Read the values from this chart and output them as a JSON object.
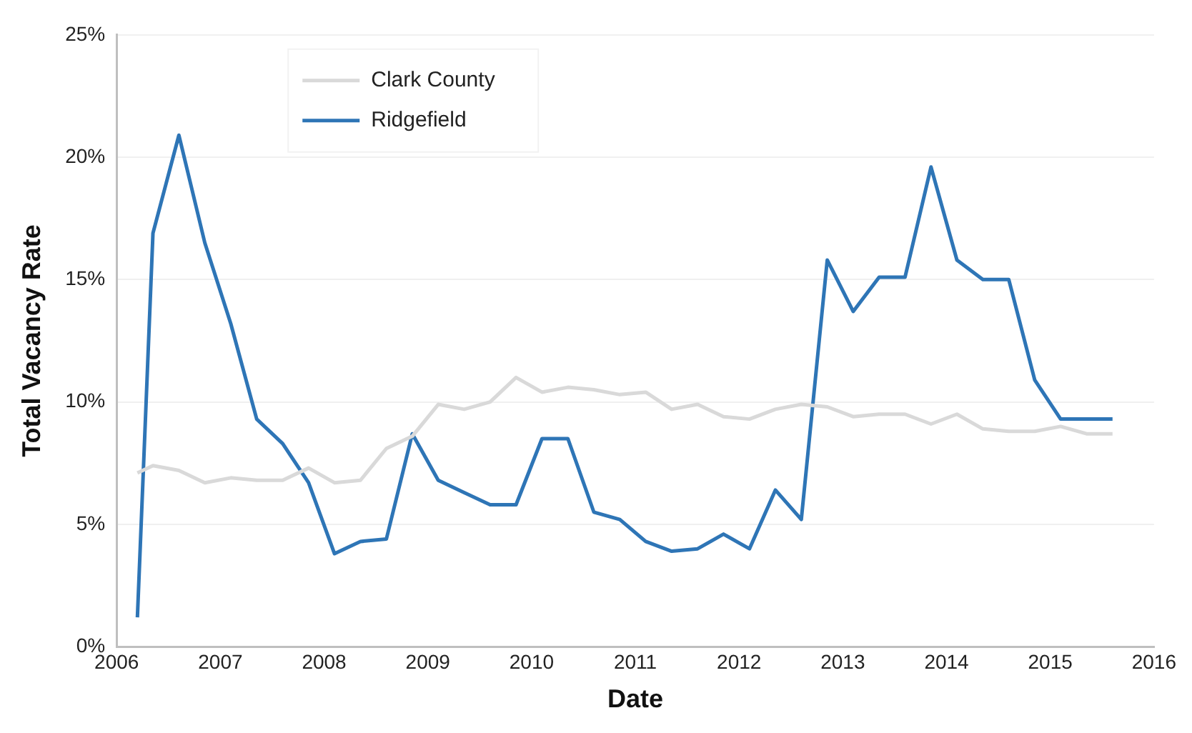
{
  "chart_data": {
    "type": "line",
    "xlabel": "Date",
    "ylabel": "Total Vacancy Rate",
    "x": [
      2006.2,
      2006.35,
      2006.6,
      2006.85,
      2007.1,
      2007.35,
      2007.6,
      2007.85,
      2008.1,
      2008.35,
      2008.6,
      2008.85,
      2009.1,
      2009.35,
      2009.6,
      2009.85,
      2010.1,
      2010.35,
      2010.6,
      2010.85,
      2011.1,
      2011.35,
      2011.6,
      2011.85,
      2012.1,
      2012.35,
      2012.6,
      2012.85,
      2013.1,
      2013.35,
      2013.6,
      2013.85,
      2014.1,
      2014.35,
      2014.6,
      2014.85,
      2015.1,
      2015.35,
      2015.6
    ],
    "series": [
      {
        "name": "Clark County",
        "color": "#d9d9d9",
        "values": [
          7.1,
          7.4,
          7.2,
          6.7,
          6.9,
          6.8,
          6.8,
          7.3,
          6.7,
          6.8,
          8.1,
          8.6,
          9.9,
          9.7,
          10.0,
          11.0,
          10.4,
          10.6,
          10.5,
          10.3,
          10.4,
          9.7,
          9.9,
          9.4,
          9.3,
          9.7,
          9.9,
          9.8,
          9.4,
          9.5,
          9.5,
          9.1,
          9.5,
          8.9,
          8.8,
          8.8,
          9.0,
          8.7,
          8.7
        ]
      },
      {
        "name": "Ridgefield",
        "color": "#2e75b6",
        "values": [
          1.2,
          16.9,
          20.9,
          16.5,
          13.2,
          9.3,
          8.3,
          6.7,
          3.8,
          4.3,
          4.4,
          8.7,
          6.8,
          6.3,
          5.8,
          5.8,
          8.5,
          8.5,
          5.5,
          5.2,
          4.3,
          3.9,
          4.0,
          4.6,
          4.0,
          6.4,
          5.2,
          15.8,
          13.7,
          15.1,
          15.1,
          19.6,
          15.8,
          15.0,
          15.0,
          10.9,
          9.3,
          9.3,
          9.3
        ]
      }
    ],
    "xlim": [
      2006,
      2016
    ],
    "xticks": [
      2006,
      2007,
      2008,
      2009,
      2010,
      2011,
      2012,
      2013,
      2014,
      2015,
      2016
    ],
    "ylim": [
      0,
      25
    ],
    "yticks": [
      {
        "value": 0,
        "label": "0%"
      },
      {
        "value": 5,
        "label": "5%"
      },
      {
        "value": 10,
        "label": "10%"
      },
      {
        "value": 15,
        "label": "15%"
      },
      {
        "value": 20,
        "label": "20%"
      },
      {
        "value": 25,
        "label": "25%"
      }
    ],
    "grid": "y",
    "legend": "top left",
    "marker": "none",
    "line_style": "solid"
  }
}
